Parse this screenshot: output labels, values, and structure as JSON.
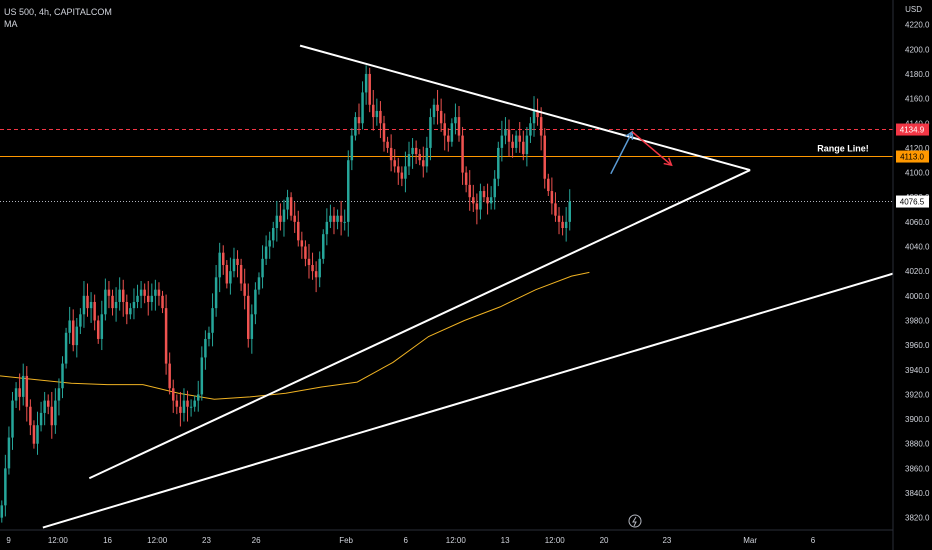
{
  "header": {
    "symbol_line": "US 500, 4h, CAPITALCOM",
    "indicator": "MA",
    "currency": "USD"
  },
  "chart_data": {
    "type": "candlestick",
    "ylim": [
      3810,
      4240
    ],
    "xlim": [
      0,
      250
    ],
    "y_ticks": [
      3820,
      3840,
      3860,
      3880,
      3900,
      3920,
      3940,
      3960,
      3980,
      4000,
      4020,
      4040,
      4060,
      4080,
      4100,
      4120,
      4140,
      4160,
      4180,
      4200,
      4220
    ],
    "x_ticks": [
      {
        "x": 2.4,
        "label": "9"
      },
      {
        "x": 16.2,
        "label": "12:00"
      },
      {
        "x": 30.1,
        "label": "16"
      },
      {
        "x": 44,
        "label": "12:00"
      },
      {
        "x": 57.8,
        "label": "23"
      },
      {
        "x": 71.7,
        "label": "26"
      },
      {
        "x": 96.9,
        "label": "Feb"
      },
      {
        "x": 113.6,
        "label": "6"
      },
      {
        "x": 127.6,
        "label": "12:00"
      },
      {
        "x": 141.4,
        "label": "13"
      },
      {
        "x": 155.3,
        "label": "12:00"
      },
      {
        "x": 169.1,
        "label": "20"
      },
      {
        "x": 186.7,
        "label": "23"
      },
      {
        "x": 210,
        "label": "Mar"
      },
      {
        "x": 227.6,
        "label": "6"
      }
    ],
    "candles_close": [
      3830,
      3860,
      3885,
      3915,
      3925,
      3918,
      3935,
      3910,
      3895,
      3880,
      3895,
      3905,
      3915,
      3910,
      3895,
      3915,
      3925,
      3945,
      3970,
      3980,
      3960,
      3975,
      3985,
      4000,
      3990,
      3995,
      3980,
      3965,
      3985,
      4005,
      4000,
      3990,
      3995,
      4005,
      3995,
      3985,
      3990,
      3995,
      4000,
      4005,
      4000,
      3995,
      4000,
      4005,
      4000,
      3990,
      3945,
      3925,
      3915,
      3910,
      3905,
      3915,
      3910,
      3910,
      3915,
      3920,
      3950,
      3965,
      3970,
      3990,
      4015,
      4035,
      4025,
      4010,
      4020,
      4030,
      4025,
      4010,
      4000,
      3965,
      3985,
      4005,
      4015,
      4030,
      4040,
      4045,
      4055,
      4065,
      4060,
      4070,
      4080,
      4065,
      4060,
      4045,
      4040,
      4030,
      4025,
      4020,
      4015,
      4030,
      4050,
      4060,
      4065,
      4060,
      4065,
      4060,
      4060,
      4110,
      4130,
      4145,
      4140,
      4165,
      4180,
      4155,
      4145,
      4150,
      4140,
      4125,
      4120,
      4110,
      4105,
      4100,
      4095,
      4105,
      4115,
      4120,
      4115,
      4110,
      4105,
      4120,
      4145,
      4155,
      4150,
      4140,
      4130,
      4125,
      4140,
      4145,
      4130,
      4100,
      4090,
      4080,
      4075,
      4070,
      4085,
      4080,
      4075,
      4080,
      4095,
      4120,
      4130,
      4135,
      4125,
      4120,
      4130,
      4125,
      4115,
      4130,
      4140,
      4150,
      4145,
      4130,
      4095,
      4085,
      4075,
      4065,
      4060,
      4055,
      4060,
      4076.5
    ],
    "ma_series": [
      {
        "x": 0,
        "y": 3935
      },
      {
        "x": 10,
        "y": 3932
      },
      {
        "x": 20,
        "y": 3929
      },
      {
        "x": 30,
        "y": 3928
      },
      {
        "x": 40,
        "y": 3928
      },
      {
        "x": 50,
        "y": 3921
      },
      {
        "x": 60,
        "y": 3916
      },
      {
        "x": 70,
        "y": 3918
      },
      {
        "x": 80,
        "y": 3921
      },
      {
        "x": 90,
        "y": 3926
      },
      {
        "x": 100,
        "y": 3930
      },
      {
        "x": 110,
        "y": 3946
      },
      {
        "x": 120,
        "y": 3967
      },
      {
        "x": 130,
        "y": 3980
      },
      {
        "x": 140,
        "y": 3991
      },
      {
        "x": 150,
        "y": 4005
      },
      {
        "x": 160,
        "y": 4016
      },
      {
        "x": 165,
        "y": 4019
      }
    ],
    "trend_lines": [
      {
        "from": [
          84,
          4203
        ],
        "to": [
          210,
          4102
        ],
        "color": "#ffffff"
      },
      {
        "from": [
          25,
          3852
        ],
        "to": [
          210,
          4102
        ],
        "color": "#ffffff"
      },
      {
        "from": [
          12,
          3812
        ],
        "to": [
          250,
          4018
        ],
        "color": "#ffffff"
      }
    ],
    "forecast_arrows": [
      {
        "from": [
          171,
          4099
        ],
        "to": [
          177,
          4133
        ],
        "color": "#5b9bd5"
      },
      {
        "from": [
          177,
          4133
        ],
        "to": [
          188,
          4106
        ],
        "color": "#f23645"
      }
    ],
    "horizontal_lines": [
      {
        "y": 4134.9,
        "color": "#f23645",
        "style": "dashed",
        "label": "4134.9"
      },
      {
        "y": 4113.0,
        "color": "#ff9800",
        "style": "solid",
        "label": "4113.0"
      },
      {
        "y": 4076.5,
        "color": "#b2b5be",
        "style": "dotted",
        "label": "4076.5"
      }
    ],
    "annotations": [
      {
        "text": "Range Line!",
        "x": 236,
        "y": 4117
      }
    ],
    "colors": {
      "up": "#26a69a",
      "down": "#ef5350",
      "ma": "#f0b323"
    }
  }
}
